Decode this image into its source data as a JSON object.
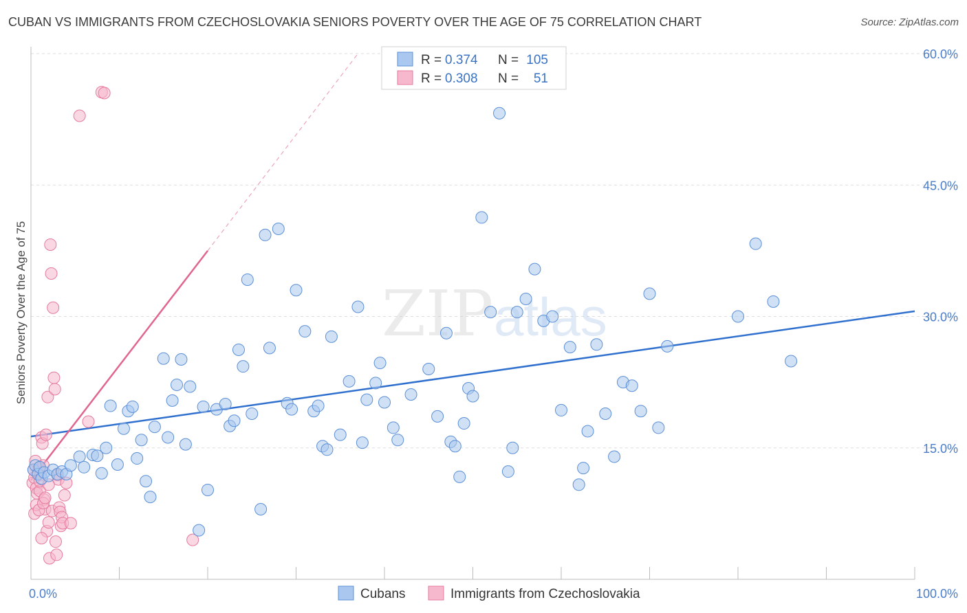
{
  "title": "CUBAN VS IMMIGRANTS FROM CZECHOSLOVAKIA SENIORS POVERTY OVER THE AGE OF 75 CORRELATION CHART",
  "source": "Source: ZipAtlas.com",
  "watermark": {
    "zip": "ZIP",
    "atlas": "atlas"
  },
  "colors": {
    "cubans_fill": "#aac8ef",
    "cubans_stroke": "#5b8fd6",
    "cubans_line": "#2f6fce",
    "czech_fill": "#f6b8cc",
    "czech_stroke": "#e57a9e",
    "czech_line": "#e06690",
    "grid": "#dddddd",
    "tick_text": "#4a7cc7"
  },
  "legend": {
    "rows": [
      {
        "r_label": "R =",
        "r_value": "0.374",
        "n_label": "N =",
        "n_value": "105"
      },
      {
        "r_label": "R =",
        "r_value": "0.308",
        "n_label": "N =",
        "n_value": "51"
      }
    ]
  },
  "chart_data": {
    "type": "scatter",
    "title": "CUBAN VS IMMIGRANTS FROM CZECHOSLOVAKIA SENIORS POVERTY OVER THE AGE OF 75 CORRELATION CHART",
    "xlabel": "",
    "ylabel": "Seniors Poverty Over the Age of 75",
    "xlim": [
      0,
      100
    ],
    "ylim": [
      0,
      60
    ],
    "x_tick_labels": [
      "0.0%",
      "100.0%"
    ],
    "y_tick_labels": [
      "15.0%",
      "30.0%",
      "45.0%",
      "60.0%"
    ],
    "y_ticks": [
      15,
      30,
      45,
      60
    ],
    "grid": true,
    "legend_position": "top-center",
    "series": [
      {
        "name": "Cubans",
        "trend": {
          "x": [
            0,
            100
          ],
          "y": [
            16.3,
            30.6
          ]
        },
        "points": [
          [
            0.3,
            12.5
          ],
          [
            0.5,
            13.0
          ],
          [
            0.8,
            12.0
          ],
          [
            1.0,
            12.8
          ],
          [
            1.2,
            11.5
          ],
          [
            1.5,
            12.2
          ],
          [
            2.0,
            11.8
          ],
          [
            2.5,
            12.5
          ],
          [
            3.0,
            12.0
          ],
          [
            3.5,
            12.3
          ],
          [
            4.0,
            12.0
          ],
          [
            4.5,
            13.0
          ],
          [
            5.5,
            14.0
          ],
          [
            6.0,
            12.8
          ],
          [
            7.0,
            14.2
          ],
          [
            7.5,
            14.1
          ],
          [
            8.0,
            12.1
          ],
          [
            8.5,
            15.0
          ],
          [
            9.0,
            19.8
          ],
          [
            9.8,
            13.1
          ],
          [
            10.5,
            17.2
          ],
          [
            11.0,
            19.2
          ],
          [
            11.5,
            19.7
          ],
          [
            12.0,
            13.8
          ],
          [
            12.5,
            15.9
          ],
          [
            13.0,
            11.2
          ],
          [
            13.5,
            9.4
          ],
          [
            14.0,
            17.4
          ],
          [
            15.0,
            25.2
          ],
          [
            15.5,
            16.2
          ],
          [
            16.0,
            20.4
          ],
          [
            16.5,
            22.2
          ],
          [
            17.0,
            25.1
          ],
          [
            17.5,
            15.4
          ],
          [
            18.0,
            22.0
          ],
          [
            19.0,
            5.6
          ],
          [
            19.5,
            19.7
          ],
          [
            20.0,
            10.2
          ],
          [
            21.0,
            19.4
          ],
          [
            22.0,
            20.0
          ],
          [
            22.5,
            17.5
          ],
          [
            23.0,
            18.1
          ],
          [
            23.5,
            26.2
          ],
          [
            24.0,
            24.3
          ],
          [
            24.5,
            34.2
          ],
          [
            25.0,
            18.9
          ],
          [
            26.0,
            8.0
          ],
          [
            26.5,
            39.3
          ],
          [
            27.0,
            26.4
          ],
          [
            28.0,
            40.0
          ],
          [
            29.0,
            20.1
          ],
          [
            29.5,
            19.4
          ],
          [
            30.0,
            33.0
          ],
          [
            31.0,
            28.3
          ],
          [
            32.0,
            19.2
          ],
          [
            32.5,
            19.8
          ],
          [
            33.0,
            15.2
          ],
          [
            33.5,
            14.8
          ],
          [
            34.0,
            27.7
          ],
          [
            35.0,
            16.5
          ],
          [
            36.0,
            22.6
          ],
          [
            37.0,
            31.1
          ],
          [
            37.5,
            15.6
          ],
          [
            38.0,
            20.5
          ],
          [
            39.0,
            22.4
          ],
          [
            39.5,
            24.7
          ],
          [
            40.0,
            20.2
          ],
          [
            41.0,
            17.3
          ],
          [
            41.5,
            15.9
          ],
          [
            43.0,
            21.1
          ],
          [
            45.0,
            24.0
          ],
          [
            46.0,
            18.6
          ],
          [
            47.0,
            28.1
          ],
          [
            47.5,
            15.7
          ],
          [
            48.0,
            15.2
          ],
          [
            48.5,
            11.7
          ],
          [
            49.0,
            17.8
          ],
          [
            49.5,
            21.8
          ],
          [
            50.0,
            20.9
          ],
          [
            51.0,
            41.3
          ],
          [
            52.0,
            30.5
          ],
          [
            53.0,
            53.2
          ],
          [
            54.0,
            12.3
          ],
          [
            54.5,
            15.0
          ],
          [
            55.0,
            30.5
          ],
          [
            56.0,
            32.0
          ],
          [
            57.0,
            35.4
          ],
          [
            58.0,
            29.5
          ],
          [
            59.0,
            30.0
          ],
          [
            60.0,
            19.3
          ],
          [
            61.0,
            26.5
          ],
          [
            62.0,
            10.8
          ],
          [
            62.5,
            12.7
          ],
          [
            63.0,
            16.9
          ],
          [
            64.0,
            26.8
          ],
          [
            65.0,
            18.9
          ],
          [
            66.0,
            14.0
          ],
          [
            67.0,
            22.5
          ],
          [
            68.0,
            22.1
          ],
          [
            69.0,
            19.2
          ],
          [
            70.0,
            32.6
          ],
          [
            71.0,
            17.3
          ],
          [
            72.0,
            26.6
          ],
          [
            80.0,
            30.0
          ],
          [
            82.0,
            38.3
          ],
          [
            84.0,
            31.7
          ],
          [
            86.0,
            24.9
          ]
        ]
      },
      {
        "name": "Immigrants from Czechoslovakia",
        "trend": {
          "x": [
            0,
            20
          ],
          "y": [
            11.3,
            37.5
          ]
        },
        "trend_dashed": {
          "x": [
            20,
            37
          ],
          "y": [
            37.5,
            60
          ]
        },
        "points": [
          [
            0.2,
            11.0
          ],
          [
            0.3,
            12.5
          ],
          [
            0.4,
            11.6
          ],
          [
            0.5,
            13.5
          ],
          [
            0.6,
            10.4
          ],
          [
            0.7,
            9.8
          ],
          [
            0.8,
            12.2
          ],
          [
            0.9,
            12.7
          ],
          [
            1.0,
            10.1
          ],
          [
            1.1,
            11.9
          ],
          [
            1.2,
            16.2
          ],
          [
            1.3,
            15.5
          ],
          [
            1.4,
            13.0
          ],
          [
            1.5,
            9.1
          ],
          [
            1.6,
            8.0
          ],
          [
            1.7,
            16.5
          ],
          [
            1.8,
            5.5
          ],
          [
            1.9,
            20.8
          ],
          [
            2.0,
            6.5
          ],
          [
            2.1,
            2.4
          ],
          [
            2.2,
            38.2
          ],
          [
            2.3,
            34.9
          ],
          [
            2.4,
            7.8
          ],
          [
            2.5,
            31.0
          ],
          [
            2.6,
            23.0
          ],
          [
            2.7,
            21.7
          ],
          [
            2.8,
            4.3
          ],
          [
            2.9,
            2.8
          ],
          [
            3.0,
            11.9
          ],
          [
            3.1,
            11.4
          ],
          [
            3.2,
            8.2
          ],
          [
            3.3,
            7.7
          ],
          [
            3.4,
            6.1
          ],
          [
            3.5,
            7.1
          ],
          [
            3.6,
            6.4
          ],
          [
            3.8,
            9.6
          ],
          [
            4.0,
            11.0
          ],
          [
            4.5,
            6.4
          ],
          [
            5.5,
            52.9
          ],
          [
            6.5,
            18.0
          ],
          [
            8.0,
            55.6
          ],
          [
            8.3,
            55.5
          ],
          [
            18.3,
            4.5
          ],
          [
            0.4,
            7.5
          ],
          [
            0.6,
            8.5
          ],
          [
            0.9,
            7.9
          ],
          [
            1.0,
            11.2
          ],
          [
            1.2,
            4.7
          ],
          [
            1.4,
            8.7
          ],
          [
            1.6,
            9.3
          ],
          [
            2.0,
            10.8
          ]
        ]
      }
    ]
  },
  "bottom_legend": {
    "items": [
      "Cubans",
      "Immigrants from Czechoslovakia"
    ]
  }
}
